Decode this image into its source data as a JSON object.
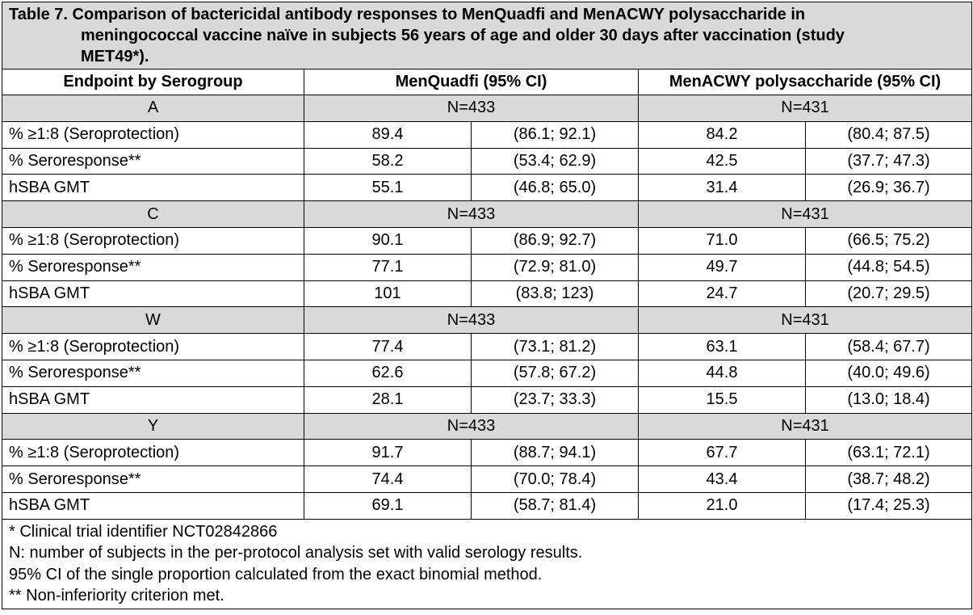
{
  "caption": {
    "line1": "Table 7. Comparison of bactericidal antibody responses to MenQuadfi and MenACWY polysaccharide in",
    "line2": "meningococcal vaccine naïve in subjects 56 years of age and older 30 days after vaccination (study",
    "line3": "MET49*)."
  },
  "headers": {
    "endpoint": "Endpoint by Serogroup",
    "menquadfi": "MenQuadfi (95% CI)",
    "menacwy": "MenACWY polysaccharide (95% CI)"
  },
  "groups": [
    {
      "serogroup": "A",
      "n_menquadfi": "N=433",
      "n_menacwy": "N=431",
      "rows": [
        {
          "label": "% ≥1:8 (Seroprotection)",
          "mq_value": "89.4",
          "mq_ci": "(86.1; 92.1)",
          "ma_value": "84.2",
          "ma_ci": "(80.4; 87.5)"
        },
        {
          "label": "% Seroresponse**",
          "mq_value": "58.2",
          "mq_ci": "(53.4; 62.9)",
          "ma_value": "42.5",
          "ma_ci": "(37.7; 47.3)"
        },
        {
          "label": "hSBA GMT",
          "mq_value": "55.1",
          "mq_ci": "(46.8; 65.0)",
          "ma_value": "31.4",
          "ma_ci": "(26.9; 36.7)"
        }
      ]
    },
    {
      "serogroup": "C",
      "n_menquadfi": "N=433",
      "n_menacwy": "N=431",
      "rows": [
        {
          "label": "% ≥1:8 (Seroprotection)",
          "mq_value": "90.1",
          "mq_ci": "(86.9; 92.7)",
          "ma_value": "71.0",
          "ma_ci": "(66.5; 75.2)"
        },
        {
          "label": "% Seroresponse**",
          "mq_value": "77.1",
          "mq_ci": "(72.9; 81.0)",
          "ma_value": "49.7",
          "ma_ci": "(44.8; 54.5)"
        },
        {
          "label": "hSBA GMT",
          "mq_value": "101",
          "mq_ci": "(83.8; 123)",
          "ma_value": "24.7",
          "ma_ci": "(20.7; 29.5)"
        }
      ]
    },
    {
      "serogroup": "W",
      "n_menquadfi": "N=433",
      "n_menacwy": "N=431",
      "rows": [
        {
          "label": "% ≥1:8 (Seroprotection)",
          "mq_value": "77.4",
          "mq_ci": "(73.1; 81.2)",
          "ma_value": "63.1",
          "ma_ci": "(58.4; 67.7)"
        },
        {
          "label": "% Seroresponse**",
          "mq_value": "62.6",
          "mq_ci": "(57.8; 67.2)",
          "ma_value": "44.8",
          "ma_ci": "(40.0; 49.6)"
        },
        {
          "label": "hSBA GMT",
          "mq_value": "28.1",
          "mq_ci": "(23.7; 33.3)",
          "ma_value": "15.5",
          "ma_ci": "(13.0; 18.4)"
        }
      ]
    },
    {
      "serogroup": "Y",
      "n_menquadfi": "N=433",
      "n_menacwy": "N=431",
      "rows": [
        {
          "label": "% ≥1:8 (Seroprotection)",
          "mq_value": "91.7",
          "mq_ci": "(88.7; 94.1)",
          "ma_value": "67.7",
          "ma_ci": "(63.1; 72.1)"
        },
        {
          "label": "% Seroresponse**",
          "mq_value": "74.4",
          "mq_ci": "(70.0; 78.4)",
          "ma_value": "43.4",
          "ma_ci": "(38.7; 48.2)"
        },
        {
          "label": "hSBA GMT",
          "mq_value": "69.1",
          "mq_ci": "(58.7; 81.4)",
          "ma_value": "21.0",
          "ma_ci": "(17.4; 25.3)"
        }
      ]
    }
  ],
  "footnotes": [
    "* Clinical trial identifier NCT02842866",
    "N: number of subjects in the per-protocol analysis set with valid serology results.",
    "95% CI of the single proportion calculated from the exact binomial method.",
    "** Non-inferiority criterion met."
  ],
  "colors": {
    "shaded_background": "#d9d9d9",
    "border": "#000000",
    "text": "#000000"
  }
}
